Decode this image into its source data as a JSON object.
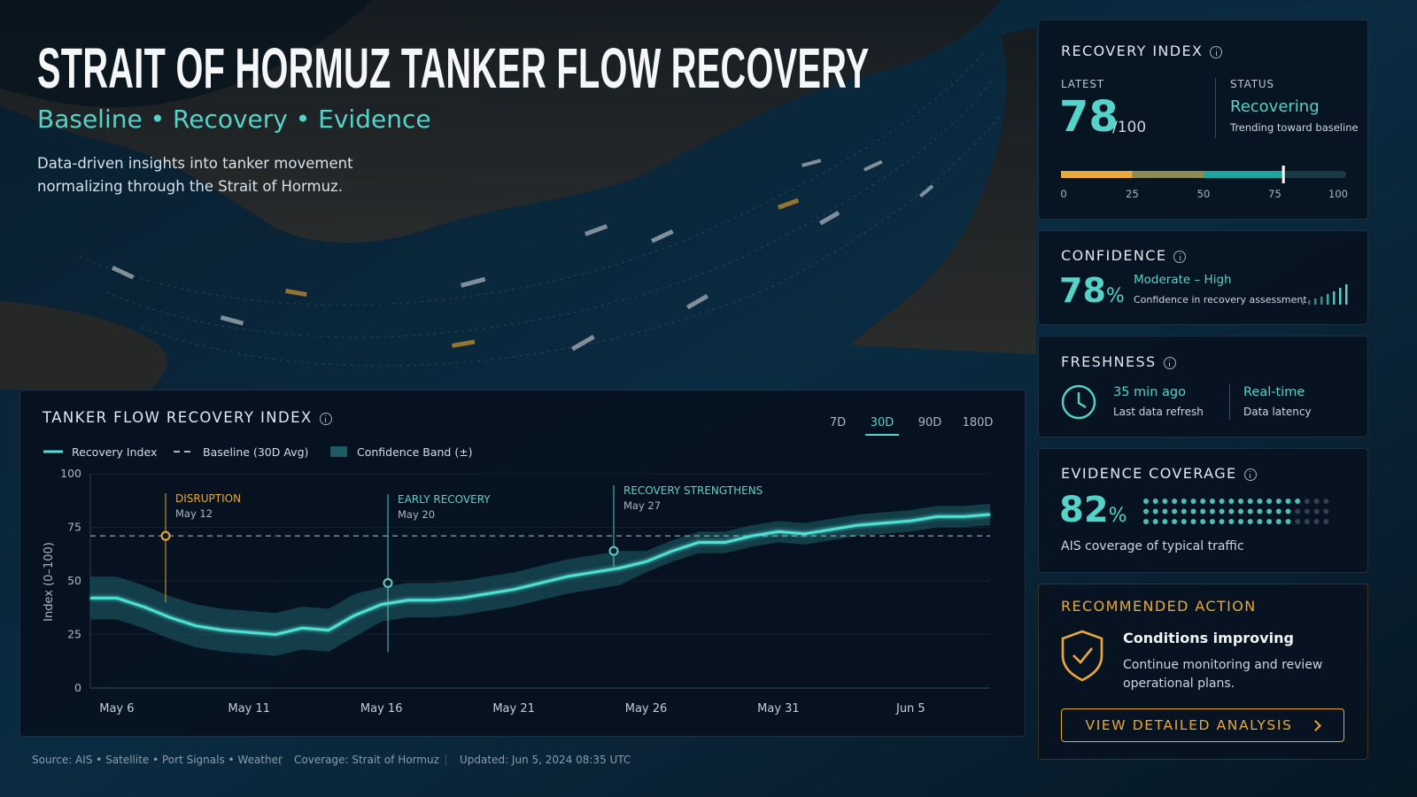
{
  "header": {
    "title": "STRAIT OF HORMUZ TANKER FLOW RECOVERY",
    "subtitle": "Baseline • Recovery • Evidence",
    "description": "Data-driven insights into tanker movement normalizing through the Strait of Hormuz."
  },
  "chart_data": {
    "type": "line",
    "title": "TANKER FLOW RECOVERY INDEX",
    "ranges": [
      "7D",
      "30D",
      "90D",
      "180D"
    ],
    "active_range": 1,
    "y_label": "Index (0–100)",
    "categories": [
      null,
      "May 6",
      null,
      null,
      null,
      null,
      "May 11",
      null,
      null,
      null,
      null,
      "May 16",
      null,
      null,
      null,
      null,
      "May 21",
      null,
      null,
      null,
      null,
      "May 26",
      null,
      null,
      null,
      null,
      "May 31",
      null,
      null,
      null,
      null,
      "Jun 5",
      null,
      null,
      null
    ],
    "series": [
      {
        "name": "Recovery Index",
        "color": "#4fe0d2",
        "values": [
          42,
          42,
          38,
          33,
          29,
          27,
          26,
          25,
          28,
          27,
          34,
          39,
          41,
          41,
          42,
          44,
          46,
          49,
          52,
          54,
          56,
          59,
          64,
          68,
          68,
          71,
          73,
          72,
          74,
          76,
          77,
          78,
          80,
          80,
          81
        ]
      }
    ],
    "baseline": {
      "name": "Baseline (30D Avg)",
      "value": 71,
      "color": "#a8b4bf"
    },
    "confidence_band": {
      "name": "Confidence Band (±)",
      "color": "#1d5a63",
      "lower": [
        32,
        32,
        28,
        23,
        19,
        17,
        16,
        15,
        18,
        17,
        24,
        31,
        33,
        33,
        34,
        36,
        38,
        41,
        44,
        46,
        48,
        54,
        59,
        63,
        63,
        66,
        68,
        67,
        69,
        71,
        72,
        73,
        75,
        75,
        76
      ],
      "upper": [
        52,
        52,
        48,
        43,
        39,
        37,
        36,
        35,
        38,
        37,
        44,
        47,
        49,
        49,
        50,
        52,
        54,
        57,
        60,
        62,
        64,
        64,
        69,
        73,
        73,
        76,
        78,
        77,
        79,
        81,
        82,
        83,
        85,
        85,
        86
      ]
    },
    "annotations": [
      {
        "label": "DISRUPTION",
        "date": "May 12",
        "value": 71,
        "color": "#e8a93a"
      },
      {
        "label": "EARLY RECOVERY",
        "date": "May 20",
        "value": 49,
        "color": "#5fd0c6"
      },
      {
        "label": "RECOVERY STRENGTHENS",
        "date": "May 27",
        "value": 64,
        "color": "#5fd0c6"
      }
    ],
    "ylim": [
      0,
      100
    ],
    "yticks": [
      0,
      25,
      50,
      75,
      100
    ],
    "grid": true
  },
  "recovery_index": {
    "title": "RECOVERY INDEX",
    "latest_label": "LATEST",
    "latest": 78,
    "latest_unit": "/100",
    "status_label": "STATUS",
    "status": "Recovering",
    "status_note": "Trending toward baseline",
    "scale": [
      0,
      25,
      50,
      75,
      100
    ]
  },
  "confidence": {
    "title": "CONFIDENCE",
    "value": 78,
    "unit": "%",
    "level": "Moderate – High",
    "note": "Confidence in recovery assessment"
  },
  "freshness": {
    "title": "FRESHNESS",
    "refresh": "35 min ago",
    "refresh_label": "Last data refresh",
    "latency": "Real-time",
    "latency_label": "Data latency"
  },
  "evidence": {
    "title": "EVIDENCE COVERAGE",
    "value": 82,
    "unit": "%",
    "note": "AIS coverage of typical traffic"
  },
  "action": {
    "title": "RECOMMENDED ACTION",
    "headline": "Conditions improving",
    "text": "Continue monitoring and review operational plans.",
    "button": "VIEW DETAILED ANALYSIS"
  },
  "footer": {
    "source": "Source: AIS • Satellite • Port Signals • Weather",
    "coverage": "Coverage: Strait of Hormuz",
    "updated": "Updated: Jun 5, 2024 08:35 UTC"
  }
}
